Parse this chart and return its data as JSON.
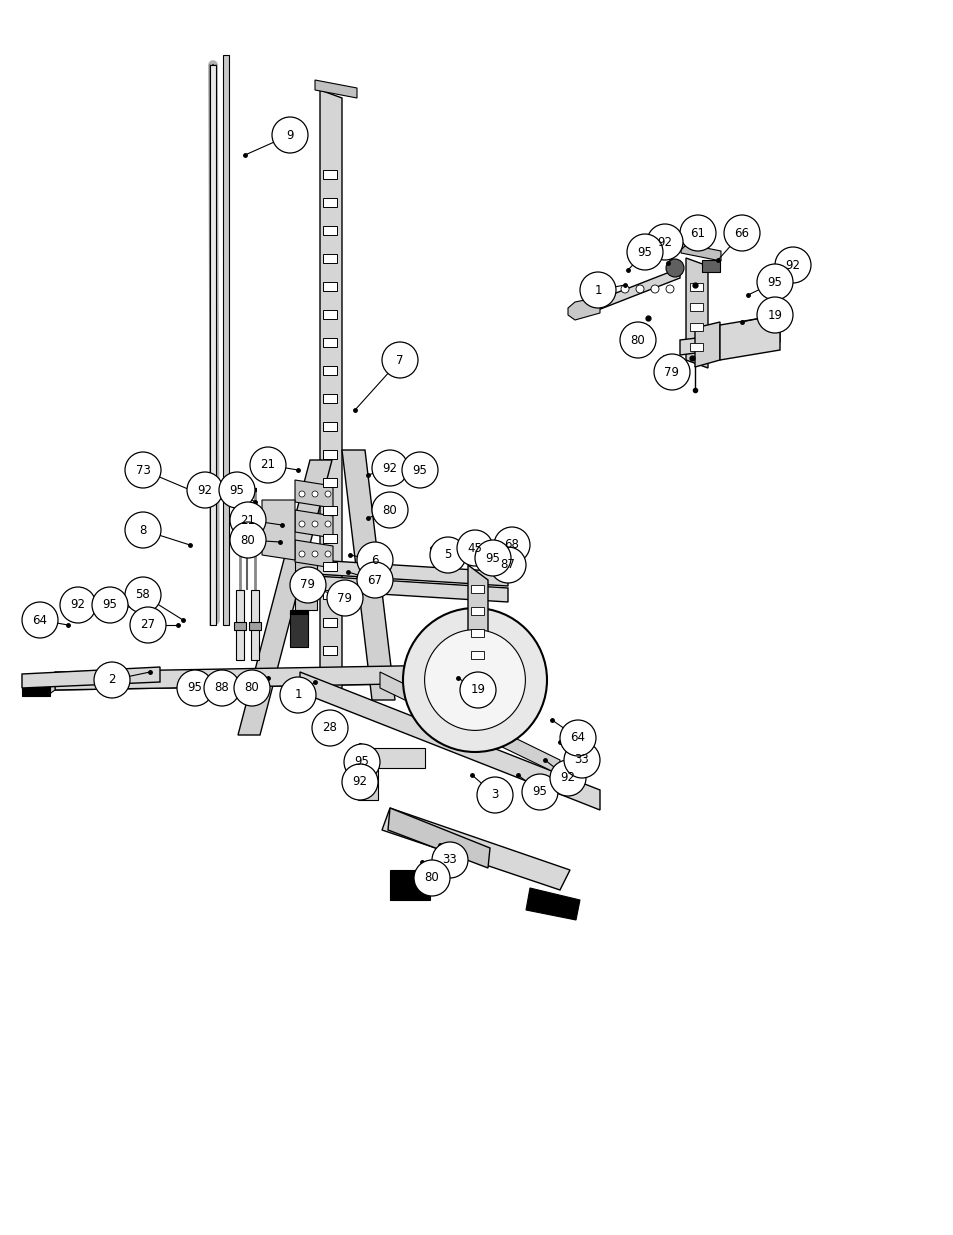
{
  "background_color": "#ffffff",
  "fig_width": 9.54,
  "fig_height": 12.35,
  "dpi": 100,
  "callouts_main": [
    [
      "9",
      290,
      135,
      245,
      155
    ],
    [
      "7",
      400,
      360,
      355,
      410
    ],
    [
      "73",
      143,
      470,
      195,
      492
    ],
    [
      "8",
      143,
      530,
      190,
      545
    ],
    [
      "58",
      143,
      595,
      183,
      620
    ],
    [
      "92",
      205,
      490,
      228,
      502
    ],
    [
      "95",
      237,
      490,
      255,
      502
    ],
    [
      "21",
      268,
      465,
      298,
      470
    ],
    [
      "21",
      248,
      520,
      282,
      525
    ],
    [
      "80",
      248,
      540,
      280,
      542
    ],
    [
      "6",
      375,
      560,
      350,
      555
    ],
    [
      "67",
      375,
      580,
      348,
      572
    ],
    [
      "79",
      308,
      585,
      302,
      572
    ],
    [
      "5",
      448,
      555,
      432,
      548
    ],
    [
      "45",
      475,
      548,
      460,
      548
    ],
    [
      "68",
      512,
      545,
      495,
      548
    ],
    [
      "87",
      508,
      565,
      492,
      565
    ],
    [
      "95",
      493,
      558,
      478,
      558
    ],
    [
      "80",
      390,
      510,
      368,
      518
    ],
    [
      "92",
      390,
      468,
      368,
      475
    ],
    [
      "95",
      420,
      470,
      403,
      477
    ],
    [
      "92",
      78,
      605,
      112,
      605
    ],
    [
      "95",
      110,
      605,
      138,
      608
    ],
    [
      "64",
      40,
      620,
      68,
      625
    ],
    [
      "27",
      148,
      625,
      178,
      625
    ],
    [
      "2",
      112,
      680,
      150,
      672
    ],
    [
      "95",
      195,
      688,
      218,
      678
    ],
    [
      "88",
      222,
      688,
      245,
      678
    ],
    [
      "80",
      252,
      688,
      268,
      678
    ],
    [
      "1",
      298,
      695,
      315,
      682
    ],
    [
      "28",
      330,
      728,
      338,
      715
    ],
    [
      "19",
      478,
      690,
      458,
      678
    ],
    [
      "95",
      362,
      762,
      360,
      745
    ],
    [
      "92",
      360,
      782,
      358,
      768
    ],
    [
      "3",
      495,
      795,
      472,
      775
    ],
    [
      "95",
      540,
      792,
      518,
      775
    ],
    [
      "92",
      568,
      778,
      545,
      760
    ],
    [
      "33",
      582,
      760,
      560,
      742
    ],
    [
      "64",
      578,
      738,
      552,
      720
    ],
    [
      "33",
      450,
      860,
      440,
      845
    ],
    [
      "80",
      432,
      878,
      422,
      862
    ],
    [
      "79",
      345,
      598,
      320,
      590
    ]
  ],
  "callouts_inset": [
    [
      "61",
      698,
      233,
      668,
      263
    ],
    [
      "66",
      742,
      233,
      718,
      260
    ],
    [
      "92",
      665,
      242,
      645,
      263
    ],
    [
      "95",
      645,
      252,
      628,
      270
    ],
    [
      "1",
      598,
      290,
      625,
      285
    ],
    [
      "92",
      793,
      265,
      762,
      278
    ],
    [
      "95",
      775,
      282,
      748,
      295
    ],
    [
      "19",
      775,
      315,
      742,
      322
    ],
    [
      "80",
      638,
      340,
      648,
      328
    ],
    [
      "79",
      672,
      372,
      665,
      358
    ]
  ]
}
